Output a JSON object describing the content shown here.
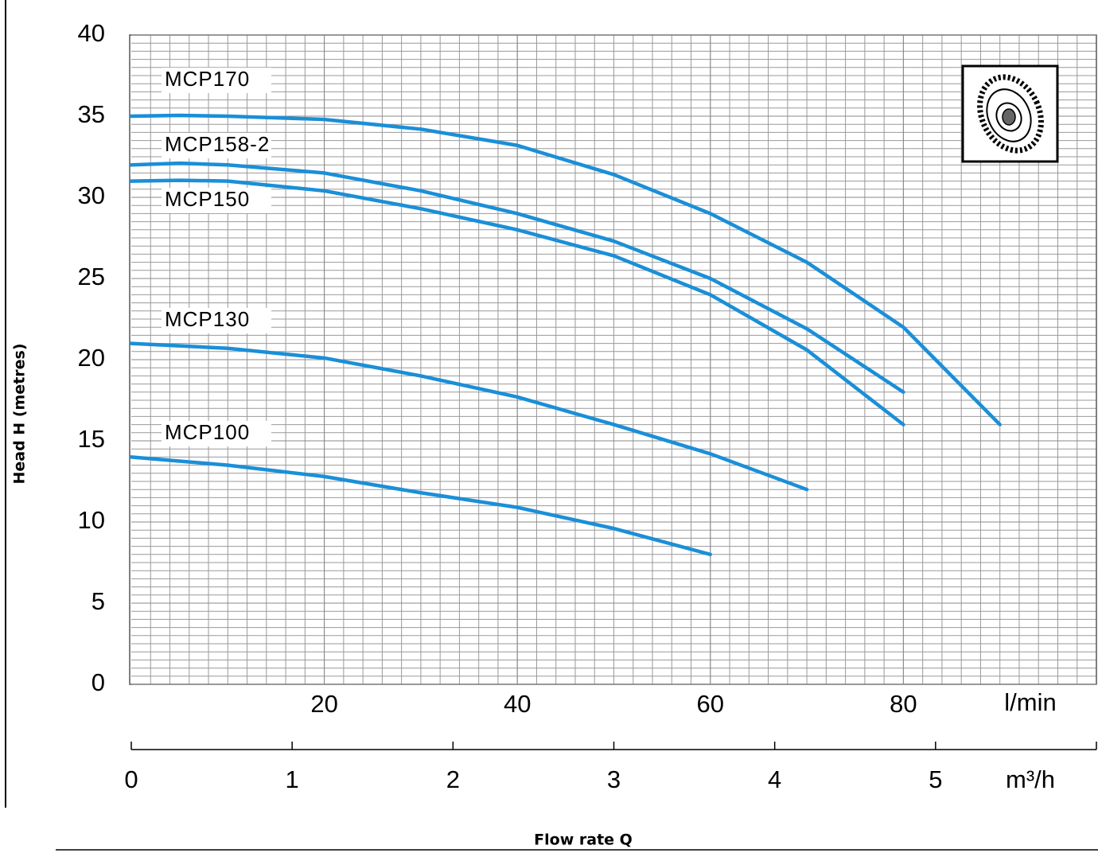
{
  "chart_data": {
    "type": "line",
    "y_label": "Head H (metres)",
    "x_label": "Flow rate  Q",
    "x_unit": "l/min",
    "x2_unit": "m³/h",
    "xlim": [
      0,
      100
    ],
    "xticks": [
      20,
      40,
      60,
      80
    ],
    "x2lim": [
      0,
      6
    ],
    "x2ticks": [
      0,
      1,
      2,
      3,
      4,
      5
    ],
    "ylim": [
      0,
      40
    ],
    "yticks": [
      0,
      5,
      10,
      15,
      20,
      25,
      30,
      35,
      40
    ],
    "grid": true,
    "series": [
      {
        "name": "MCP170",
        "color": "#1a8fd8",
        "x": [
          0,
          5,
          10,
          20,
          30,
          40,
          50,
          60,
          70,
          80,
          90
        ],
        "values": [
          35,
          35.05,
          35,
          34.8,
          34.2,
          33.2,
          31.4,
          29.0,
          26.0,
          22.0,
          16
        ]
      },
      {
        "name": "MCP158-2",
        "color": "#1a8fd8",
        "x": [
          0,
          5,
          10,
          20,
          30,
          40,
          50,
          60,
          70,
          80
        ],
        "values": [
          32,
          32.1,
          32.0,
          31.5,
          30.4,
          29.0,
          27.3,
          25.0,
          21.9,
          18
        ]
      },
      {
        "name": "MCP150",
        "color": "#1a8fd8",
        "x": [
          0,
          5,
          10,
          20,
          30,
          40,
          50,
          60,
          70,
          80
        ],
        "values": [
          31,
          31.05,
          31.0,
          30.4,
          29.3,
          28.0,
          26.4,
          24.0,
          20.6,
          16
        ]
      },
      {
        "name": "MCP130",
        "color": "#1a8fd8",
        "x": [
          0,
          10,
          20,
          30,
          40,
          50,
          60,
          70
        ],
        "values": [
          21,
          20.7,
          20.1,
          19.0,
          17.7,
          16.0,
          14.2,
          12
        ]
      },
      {
        "name": "MCP100",
        "color": "#1a8fd8",
        "x": [
          0,
          10,
          20,
          30,
          40,
          50,
          60
        ],
        "values": [
          14,
          13.5,
          12.8,
          11.8,
          10.9,
          9.6,
          8
        ]
      }
    ]
  }
}
